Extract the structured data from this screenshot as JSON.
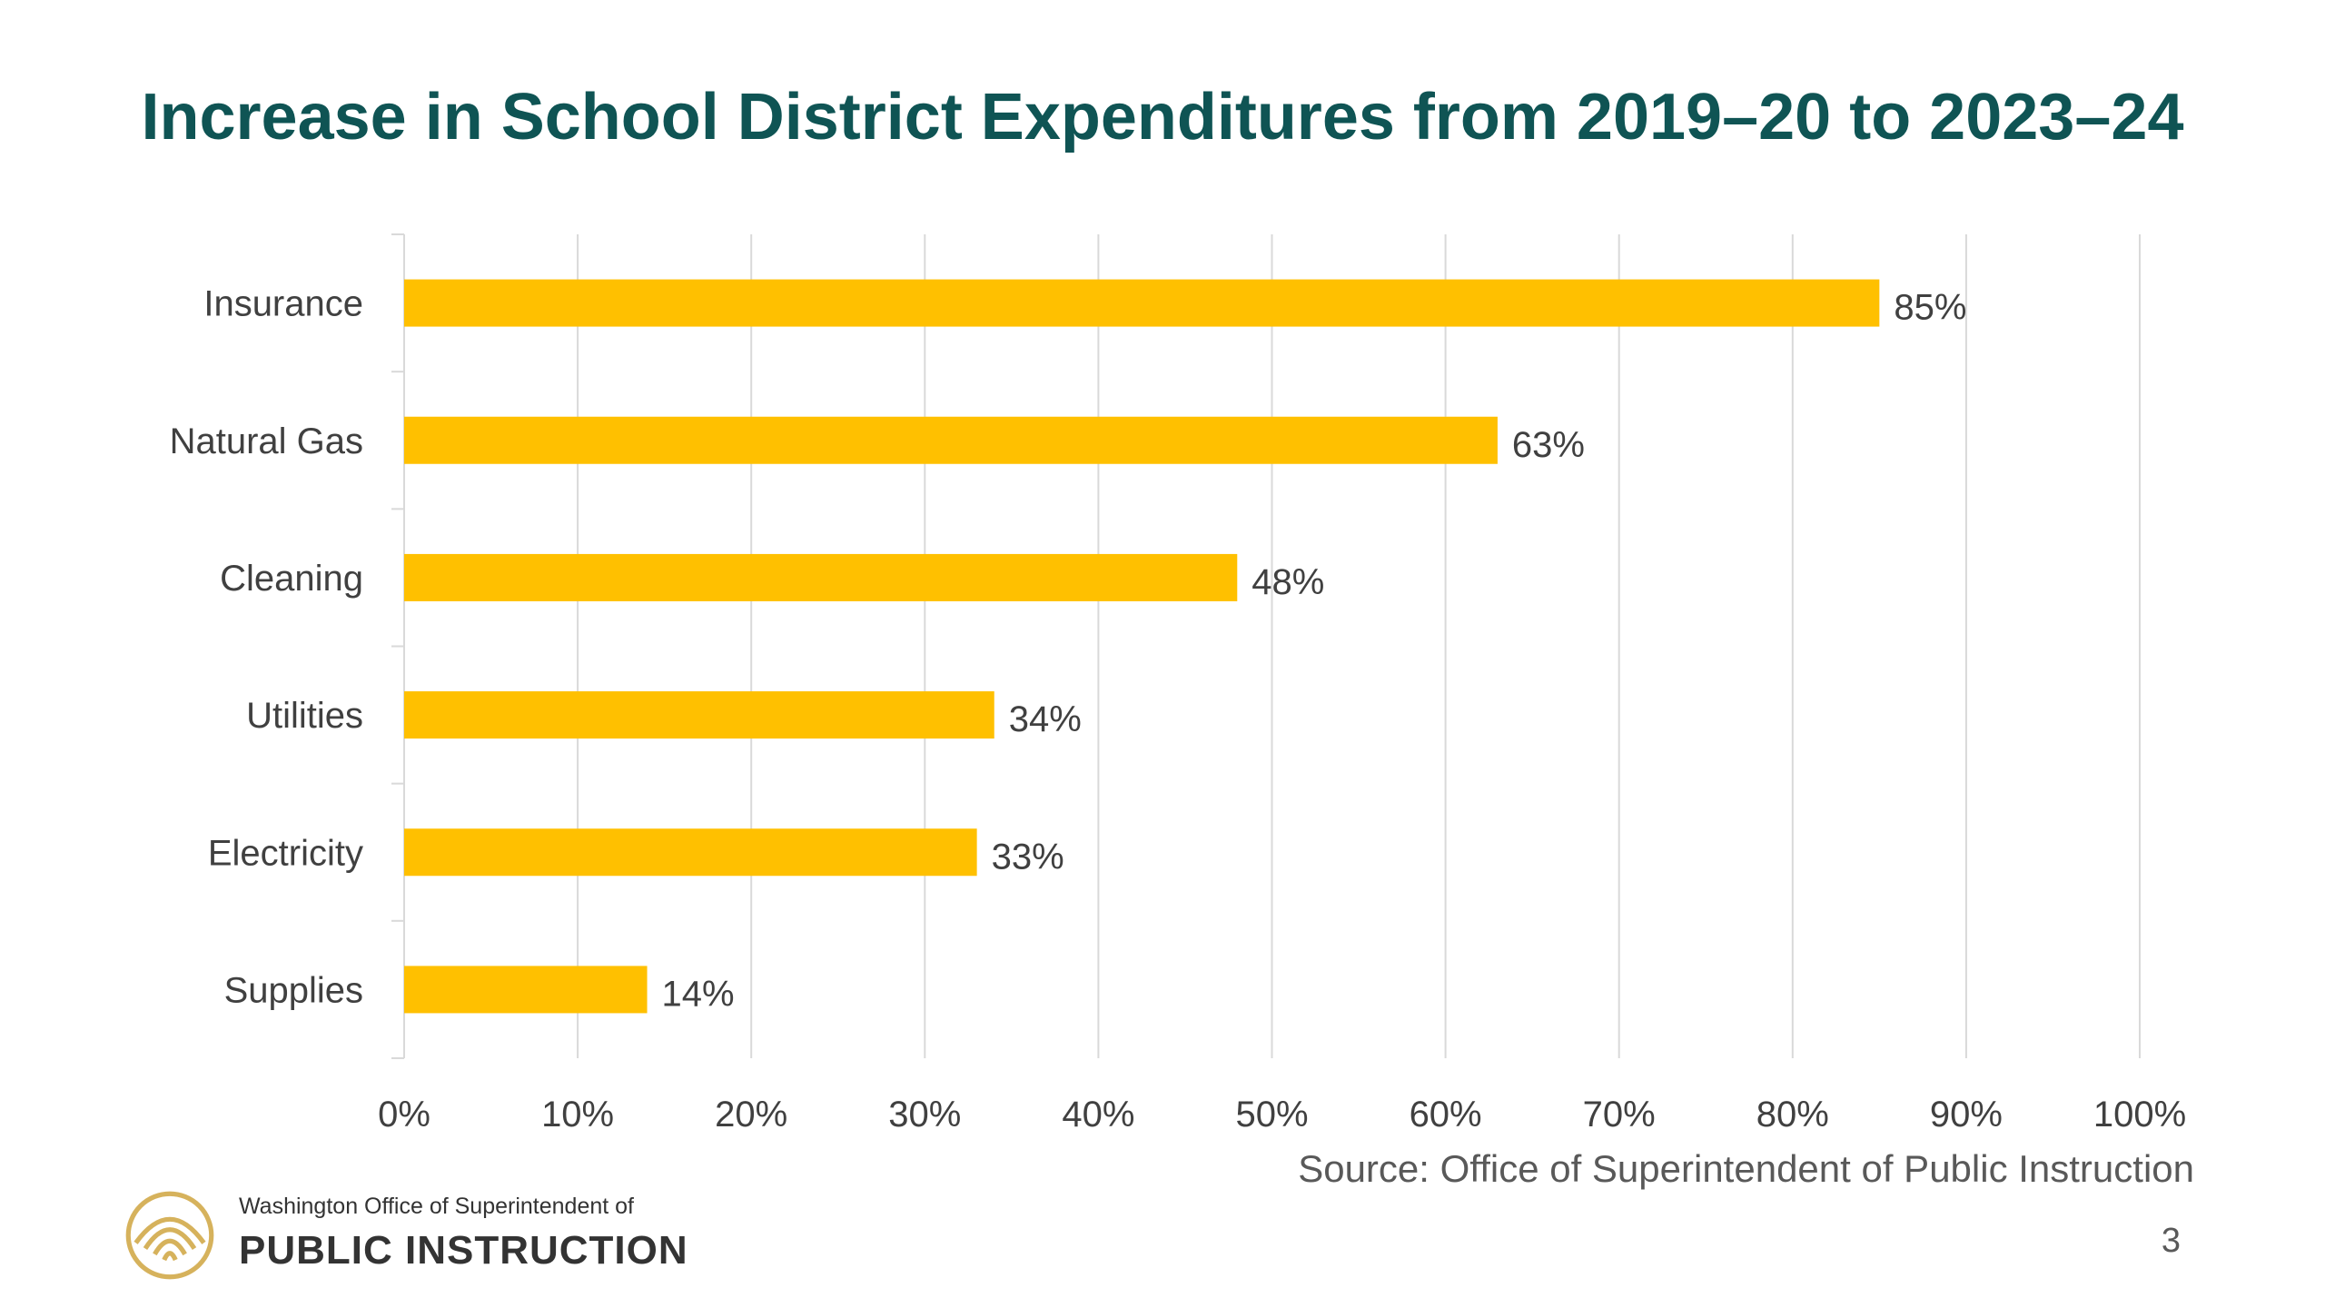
{
  "slide": {
    "title": "Increase in School District Expenditures from 2019–20 to 2023–24",
    "source": "Source: Office of Superintendent of Public Instruction",
    "page_number": "3"
  },
  "logo": {
    "line1": "Washington Office of Superintendent of",
    "line2": "PUBLIC INSTRUCTION",
    "icon": "ospi-seal-icon"
  },
  "colors": {
    "bar": "#FFC000",
    "title": "#0F5454",
    "logo_gold": "#D6B25C",
    "grid": "#D9D9D9",
    "text": "#404040"
  },
  "chart_data": {
    "type": "bar",
    "orientation": "horizontal",
    "categories": [
      "Insurance",
      "Natural Gas",
      "Cleaning",
      "Utilities",
      "Electricity",
      "Supplies"
    ],
    "values": [
      85,
      63,
      48,
      34,
      33,
      14
    ],
    "value_labels": [
      "85%",
      "63%",
      "48%",
      "34%",
      "33%",
      "14%"
    ],
    "xlim": [
      0,
      100
    ],
    "x_ticks": [
      0,
      10,
      20,
      30,
      40,
      50,
      60,
      70,
      80,
      90,
      100
    ],
    "x_tick_labels": [
      "0%",
      "10%",
      "20%",
      "30%",
      "40%",
      "50%",
      "60%",
      "70%",
      "80%",
      "90%",
      "100%"
    ],
    "grid": "vertical",
    "legend": "none"
  }
}
